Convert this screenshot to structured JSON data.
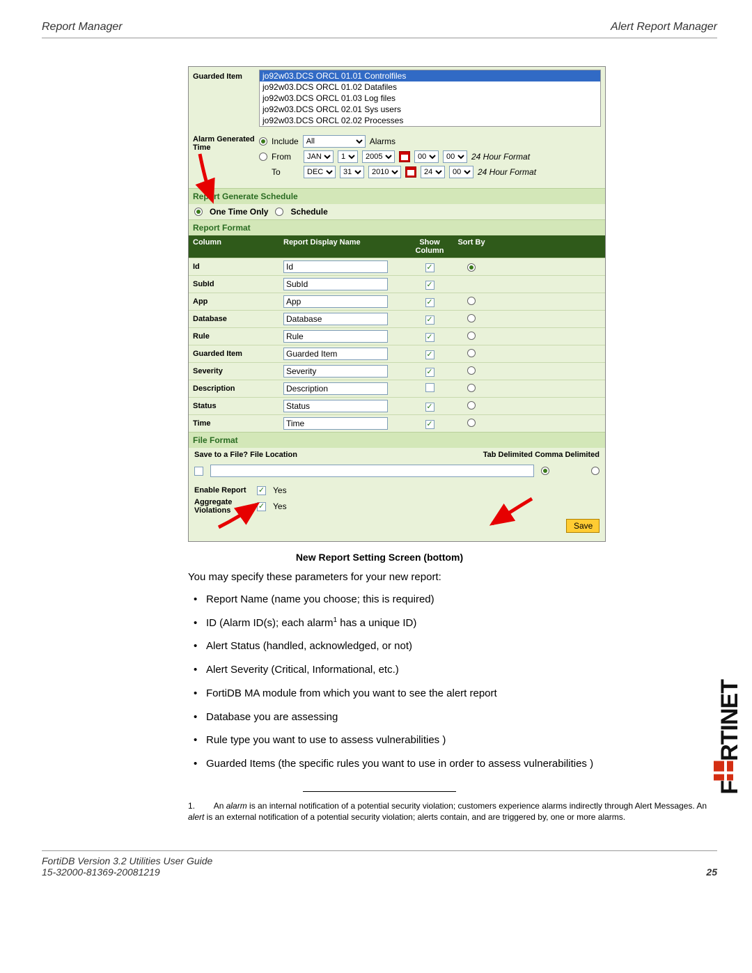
{
  "header": {
    "left": "Report Manager",
    "right": "Alert Report Manager"
  },
  "guarded_item": {
    "label": "Guarded Item",
    "items": [
      "jo92w03.DCS ORCL 01.01 Controlfiles",
      "jo92w03.DCS ORCL 01.02 Datafiles",
      "jo92w03.DCS ORCL 01.03 Log files",
      "jo92w03.DCS ORCL 02.01 Sys users",
      "jo92w03.DCS ORCL 02.02 Processes"
    ],
    "selected_index": 0
  },
  "alarm_time": {
    "label": "Alarm Generated Time",
    "mode": "include",
    "include_label": "Include",
    "include_value": "All",
    "alarms_label": "Alarms",
    "from_label": "From",
    "to_label": "To",
    "from": {
      "month": "JAN",
      "day": "1",
      "year": "2005",
      "hh": "00",
      "mm": "00"
    },
    "to": {
      "month": "DEC",
      "day": "31",
      "year": "2010",
      "hh": "24",
      "mm": "00"
    },
    "hour_format": "24 Hour Format"
  },
  "generate_schedule": {
    "title": "Report Generate Schedule",
    "one_time_label": "One Time Only",
    "schedule_label": "Schedule",
    "selected": "one_time"
  },
  "report_format": {
    "title": "Report Format",
    "headers": {
      "c1": "Column",
      "c2": "Report Display Name",
      "c3": "Show Column",
      "c4": "Sort By"
    },
    "rows": [
      {
        "col": "Id",
        "display": "Id",
        "show": true,
        "sort": "selected"
      },
      {
        "col": "SubId",
        "display": "SubId",
        "show": true,
        "sort": "none"
      },
      {
        "col": "App",
        "display": "App",
        "show": true,
        "sort": "unselected"
      },
      {
        "col": "Database",
        "display": "Database",
        "show": true,
        "sort": "unselected"
      },
      {
        "col": "Rule",
        "display": "Rule",
        "show": true,
        "sort": "unselected"
      },
      {
        "col": "Guarded Item",
        "display": "Guarded Item",
        "show": true,
        "sort": "unselected"
      },
      {
        "col": "Severity",
        "display": "Severity",
        "show": true,
        "sort": "unselected"
      },
      {
        "col": "Description",
        "display": "Description",
        "show": false,
        "sort": "unselected"
      },
      {
        "col": "Status",
        "display": "Status",
        "show": true,
        "sort": "unselected"
      },
      {
        "col": "Time",
        "display": "Time",
        "show": true,
        "sort": "unselected"
      }
    ]
  },
  "file_format": {
    "title": "File Format",
    "save_label": "Save to a File?",
    "loc_label": "File Location",
    "tab_label": "Tab Delimited",
    "comma_label": "Comma Delimited",
    "save_checked": false,
    "delimiter_selected": "tab"
  },
  "options": {
    "enable_label": "Enable Report",
    "enable_checked": true,
    "enable_text": "Yes",
    "aggregate_label": "Aggregate Violations",
    "aggregate_checked": true,
    "aggregate_text": "Yes"
  },
  "save_button": "Save",
  "caption": "New Report Setting Screen (bottom)",
  "body_intro": "You may specify these parameters for your new report:",
  "bullets": [
    "Report Name (name you choose; this is required)",
    "ID (Alarm ID(s); each alarm¹ has a unique ID)",
    "Alert Status (handled, acknowledged, or not)",
    "Alert Severity (Critical, Informational, etc.)",
    "FortiDB MA module from which you want to see the alert report",
    "Database you are assessing",
    "Rule type you want to use to assess vulnerabilities )",
    "Guarded Items (the specific rules you want to use in order to assess vulnerabilities )"
  ],
  "footnote": {
    "num": "1.",
    "text": "An alarm is an internal notification of a potential security violation; customers experience alarms indirectly through Alert Messages. An alert is an external notification of a potential security violation; alerts contain, and are triggered by, one or more alarms."
  },
  "footer": {
    "line1": "FortiDB Version 3.2 Utilities  User Guide",
    "line2": "15-32000-81369-20081219",
    "page": "25"
  },
  "logo_text": "F RTINET",
  "colors": {
    "panel_bg": "#e9f2d9",
    "section_green": "#d3e7b8",
    "header_dark": "#2f5a1a",
    "selection_blue": "#316ac5",
    "save_btn": "#ffcc33",
    "arrow_red": "#e60000",
    "logo_red": "#d42e12"
  }
}
